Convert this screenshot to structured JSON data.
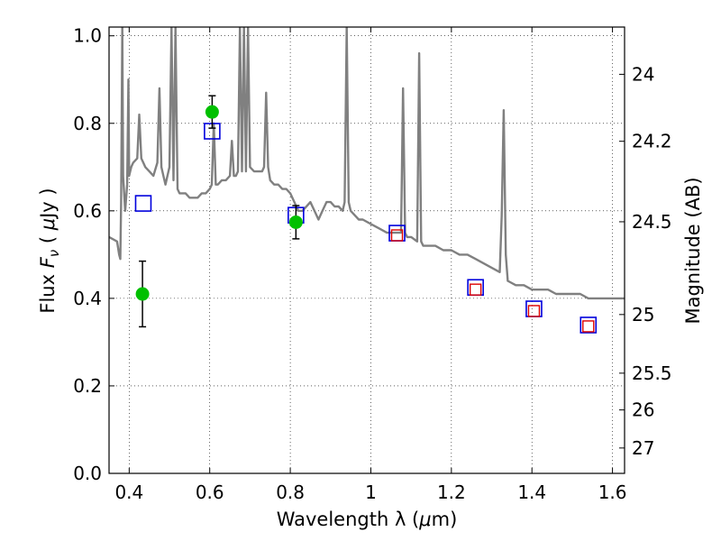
{
  "chart_data": {
    "type": "line+scatter",
    "xlabel_prefix": "Wavelength  λ (",
    "xlabel_mu": "μ",
    "xlabel_suffix": "m)",
    "ylabel_prefix": "Flux  ",
    "ylabel_F": "F",
    "ylabel_nu": "ν",
    "ylabel_open": "  ( ",
    "ylabel_mu": "μ",
    "ylabel_close": "Jy )",
    "ylabel_right": "Magnitude (AB)",
    "xlim": [
      0.35,
      1.63
    ],
    "ylim": [
      0.0,
      1.02
    ],
    "grid": true,
    "x_ticks": [
      {
        "value": 0.4,
        "label": "0.4"
      },
      {
        "value": 0.6,
        "label": "0.6"
      },
      {
        "value": 0.8,
        "label": "0.8"
      },
      {
        "value": 1.0,
        "label": "1"
      },
      {
        "value": 1.2,
        "label": "1.2"
      },
      {
        "value": 1.4,
        "label": "1.4"
      },
      {
        "value": 1.6,
        "label": "1.6"
      }
    ],
    "y_ticks": [
      {
        "value": 0.0,
        "label": "0.0"
      },
      {
        "value": 0.2,
        "label": "0.2"
      },
      {
        "value": 0.4,
        "label": "0.4"
      },
      {
        "value": 0.6,
        "label": "0.6"
      },
      {
        "value": 0.8,
        "label": "0.8"
      },
      {
        "value": 1.0,
        "label": "1.0"
      }
    ],
    "right_ticks": [
      {
        "label": "24",
        "flux": 0.912
      },
      {
        "label": "24.2",
        "flux": 0.759
      },
      {
        "label": "24.5",
        "flux": 0.575
      },
      {
        "label": "25",
        "flux": 0.363
      },
      {
        "label": "25.5",
        "flux": 0.229
      },
      {
        "label": "26",
        "flux": 0.145
      },
      {
        "label": "27",
        "flux": 0.058
      }
    ],
    "model_spectrum": {
      "color": "#808080",
      "x": [
        0.35,
        0.37,
        0.375,
        0.378,
        0.38,
        0.383,
        0.385,
        0.39,
        0.395,
        0.398,
        0.4,
        0.405,
        0.41,
        0.42,
        0.425,
        0.43,
        0.435,
        0.44,
        0.45,
        0.46,
        0.47,
        0.475,
        0.48,
        0.485,
        0.49,
        0.5,
        0.505,
        0.51,
        0.515,
        0.52,
        0.525,
        0.53,
        0.54,
        0.55,
        0.56,
        0.57,
        0.58,
        0.59,
        0.6,
        0.605,
        0.61,
        0.615,
        0.62,
        0.63,
        0.64,
        0.65,
        0.655,
        0.66,
        0.665,
        0.67,
        0.675,
        0.68,
        0.685,
        0.69,
        0.695,
        0.7,
        0.71,
        0.72,
        0.73,
        0.735,
        0.74,
        0.745,
        0.75,
        0.76,
        0.77,
        0.78,
        0.79,
        0.8,
        0.81,
        0.82,
        0.83,
        0.84,
        0.85,
        0.86,
        0.87,
        0.88,
        0.89,
        0.9,
        0.91,
        0.92,
        0.93,
        0.935,
        0.94,
        0.945,
        0.95,
        0.96,
        0.97,
        0.98,
        1.0,
        1.02,
        1.04,
        1.06,
        1.075,
        1.08,
        1.085,
        1.09,
        1.1,
        1.115,
        1.12,
        1.125,
        1.13,
        1.14,
        1.16,
        1.18,
        1.2,
        1.22,
        1.24,
        1.26,
        1.28,
        1.3,
        1.32,
        1.325,
        1.33,
        1.335,
        1.34,
        1.36,
        1.38,
        1.4,
        1.42,
        1.44,
        1.46,
        1.48,
        1.5,
        1.52,
        1.54,
        1.56,
        1.58,
        1.6,
        1.63
      ],
      "y": [
        0.54,
        0.53,
        0.5,
        0.49,
        0.62,
        1.02,
        0.68,
        0.6,
        0.66,
        0.9,
        0.68,
        0.7,
        0.71,
        0.72,
        0.82,
        0.72,
        0.71,
        0.7,
        0.69,
        0.68,
        0.71,
        0.88,
        0.7,
        0.68,
        0.66,
        0.7,
        1.02,
        0.67,
        1.02,
        0.65,
        0.64,
        0.64,
        0.64,
        0.63,
        0.63,
        0.63,
        0.64,
        0.64,
        0.65,
        0.66,
        0.8,
        0.66,
        0.66,
        0.67,
        0.67,
        0.68,
        0.76,
        0.68,
        0.68,
        0.69,
        1.02,
        0.69,
        1.02,
        0.69,
        1.02,
        0.7,
        0.69,
        0.69,
        0.69,
        0.7,
        0.87,
        0.7,
        0.67,
        0.66,
        0.66,
        0.65,
        0.65,
        0.64,
        0.62,
        0.6,
        0.6,
        0.61,
        0.62,
        0.6,
        0.58,
        0.6,
        0.62,
        0.62,
        0.61,
        0.61,
        0.6,
        0.62,
        1.02,
        0.62,
        0.6,
        0.59,
        0.58,
        0.58,
        0.57,
        0.56,
        0.55,
        0.55,
        0.55,
        0.88,
        0.55,
        0.54,
        0.54,
        0.53,
        0.96,
        0.53,
        0.52,
        0.52,
        0.52,
        0.51,
        0.51,
        0.5,
        0.5,
        0.49,
        0.48,
        0.47,
        0.46,
        0.59,
        0.83,
        0.5,
        0.44,
        0.43,
        0.43,
        0.42,
        0.42,
        0.42,
        0.41,
        0.41,
        0.41,
        0.41,
        0.4,
        0.4,
        0.4,
        0.4,
        0.4
      ]
    },
    "observed_points": {
      "color": "#00c000",
      "points": [
        {
          "x": 0.433,
          "y": 0.41,
          "err": 0.075
        },
        {
          "x": 0.606,
          "y": 0.826,
          "err": 0.037
        },
        {
          "x": 0.814,
          "y": 0.574,
          "err": 0.038
        }
      ]
    },
    "model_photometry_blue": {
      "color": "#0000dd",
      "points": [
        {
          "x": 0.435,
          "y": 0.617
        },
        {
          "x": 0.606,
          "y": 0.782
        },
        {
          "x": 0.814,
          "y": 0.59
        },
        {
          "x": 1.065,
          "y": 0.549
        },
        {
          "x": 1.26,
          "y": 0.425
        },
        {
          "x": 1.405,
          "y": 0.376
        },
        {
          "x": 1.54,
          "y": 0.339
        }
      ]
    },
    "model_photometry_red": {
      "color": "#dd0000",
      "points": [
        {
          "x": 1.065,
          "y": 0.544
        },
        {
          "x": 1.26,
          "y": 0.42
        },
        {
          "x": 1.405,
          "y": 0.371
        },
        {
          "x": 1.54,
          "y": 0.336
        }
      ]
    }
  }
}
